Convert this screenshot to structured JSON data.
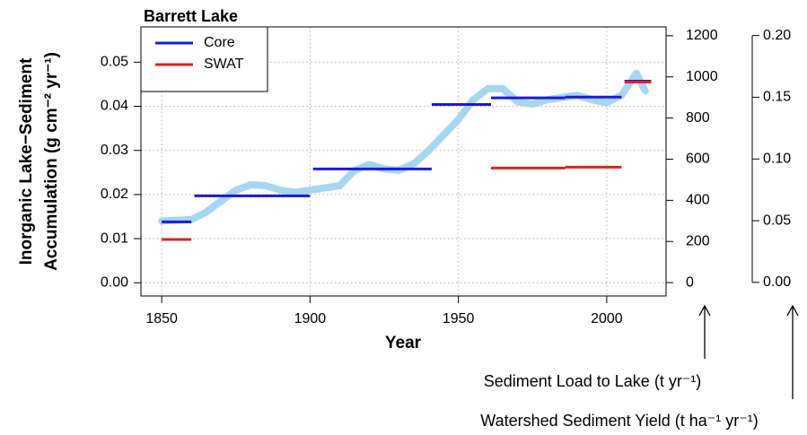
{
  "chart_data": {
    "type": "line",
    "title": "Barrett Lake",
    "xlabel": "Year",
    "ylabel": [
      "Inorganic Lake−Sediment",
      "Accumulation (g cm⁻² yr⁻¹)"
    ],
    "y2label": "Sediment Load to Lake (t yr⁻¹)",
    "y3label": "Watershed Sediment Yield (t ha⁻¹ yr⁻¹)",
    "xlim": [
      1843,
      2020
    ],
    "xticks": [
      1850,
      1900,
      1950,
      2000
    ],
    "ylim": [
      -0.003,
      0.058
    ],
    "yticks": [
      {
        "value": 0,
        "label": "0.00"
      },
      {
        "value": 0.01,
        "label": "0.01"
      },
      {
        "value": 0.02,
        "label": "0.02"
      },
      {
        "value": 0.03,
        "label": "0.03"
      },
      {
        "value": 0.04,
        "label": "0.04"
      },
      {
        "value": 0.05,
        "label": "0.05"
      }
    ],
    "y2lim": [
      -65,
      1243
    ],
    "y2ticks": [
      0,
      200,
      400,
      600,
      800,
      1000,
      1200
    ],
    "y3lim": [
      -0.011,
      0.207
    ],
    "y3ticks": [
      {
        "value": 0,
        "label": "0.00"
      },
      {
        "value": 0.05,
        "label": "0.05"
      },
      {
        "value": 0.1,
        "label": "0.10"
      },
      {
        "value": 0.15,
        "label": "0.15"
      },
      {
        "value": 0.2,
        "label": "0.20"
      }
    ],
    "grid": true,
    "legend": "upper left",
    "trend": {
      "color": "#a6d6f0",
      "x": [
        1850,
        1860,
        1865,
        1870,
        1875,
        1880,
        1885,
        1890,
        1895,
        1900,
        1905,
        1910,
        1915,
        1920,
        1925,
        1930,
        1935,
        1940,
        1945,
        1950,
        1955,
        1960,
        1965,
        1970,
        1975,
        1980,
        1985,
        1990,
        1995,
        2000,
        2005,
        2010,
        2013
      ],
      "values": [
        0.014,
        0.0143,
        0.016,
        0.0185,
        0.021,
        0.0222,
        0.022,
        0.021,
        0.0205,
        0.021,
        0.0215,
        0.022,
        0.0255,
        0.0268,
        0.0258,
        0.0255,
        0.027,
        0.03,
        0.0335,
        0.037,
        0.0415,
        0.044,
        0.044,
        0.041,
        0.0405,
        0.0415,
        0.042,
        0.0425,
        0.0415,
        0.0408,
        0.0425,
        0.0475,
        0.0435
      ]
    },
    "series": [
      {
        "name": "Core",
        "color": "#1a1ad8",
        "x_start": [
          1850,
          1861,
          1901,
          1941,
          1961,
          1986,
          2006
        ],
        "x_end": [
          1860,
          1900,
          1941,
          1961,
          1986,
          2005,
          2015
        ],
        "values": [
          0.0138,
          0.0197,
          0.0258,
          0.0404,
          0.0419,
          0.0421,
          0.0457
        ]
      },
      {
        "name": "SWAT",
        "color": "#e02020",
        "x_start": [
          1850,
          1961,
          1986,
          2006
        ],
        "x_end": [
          1860,
          1986,
          2005,
          2015
        ],
        "values": [
          0.0098,
          0.026,
          0.0262,
          0.0455
        ]
      }
    ]
  }
}
